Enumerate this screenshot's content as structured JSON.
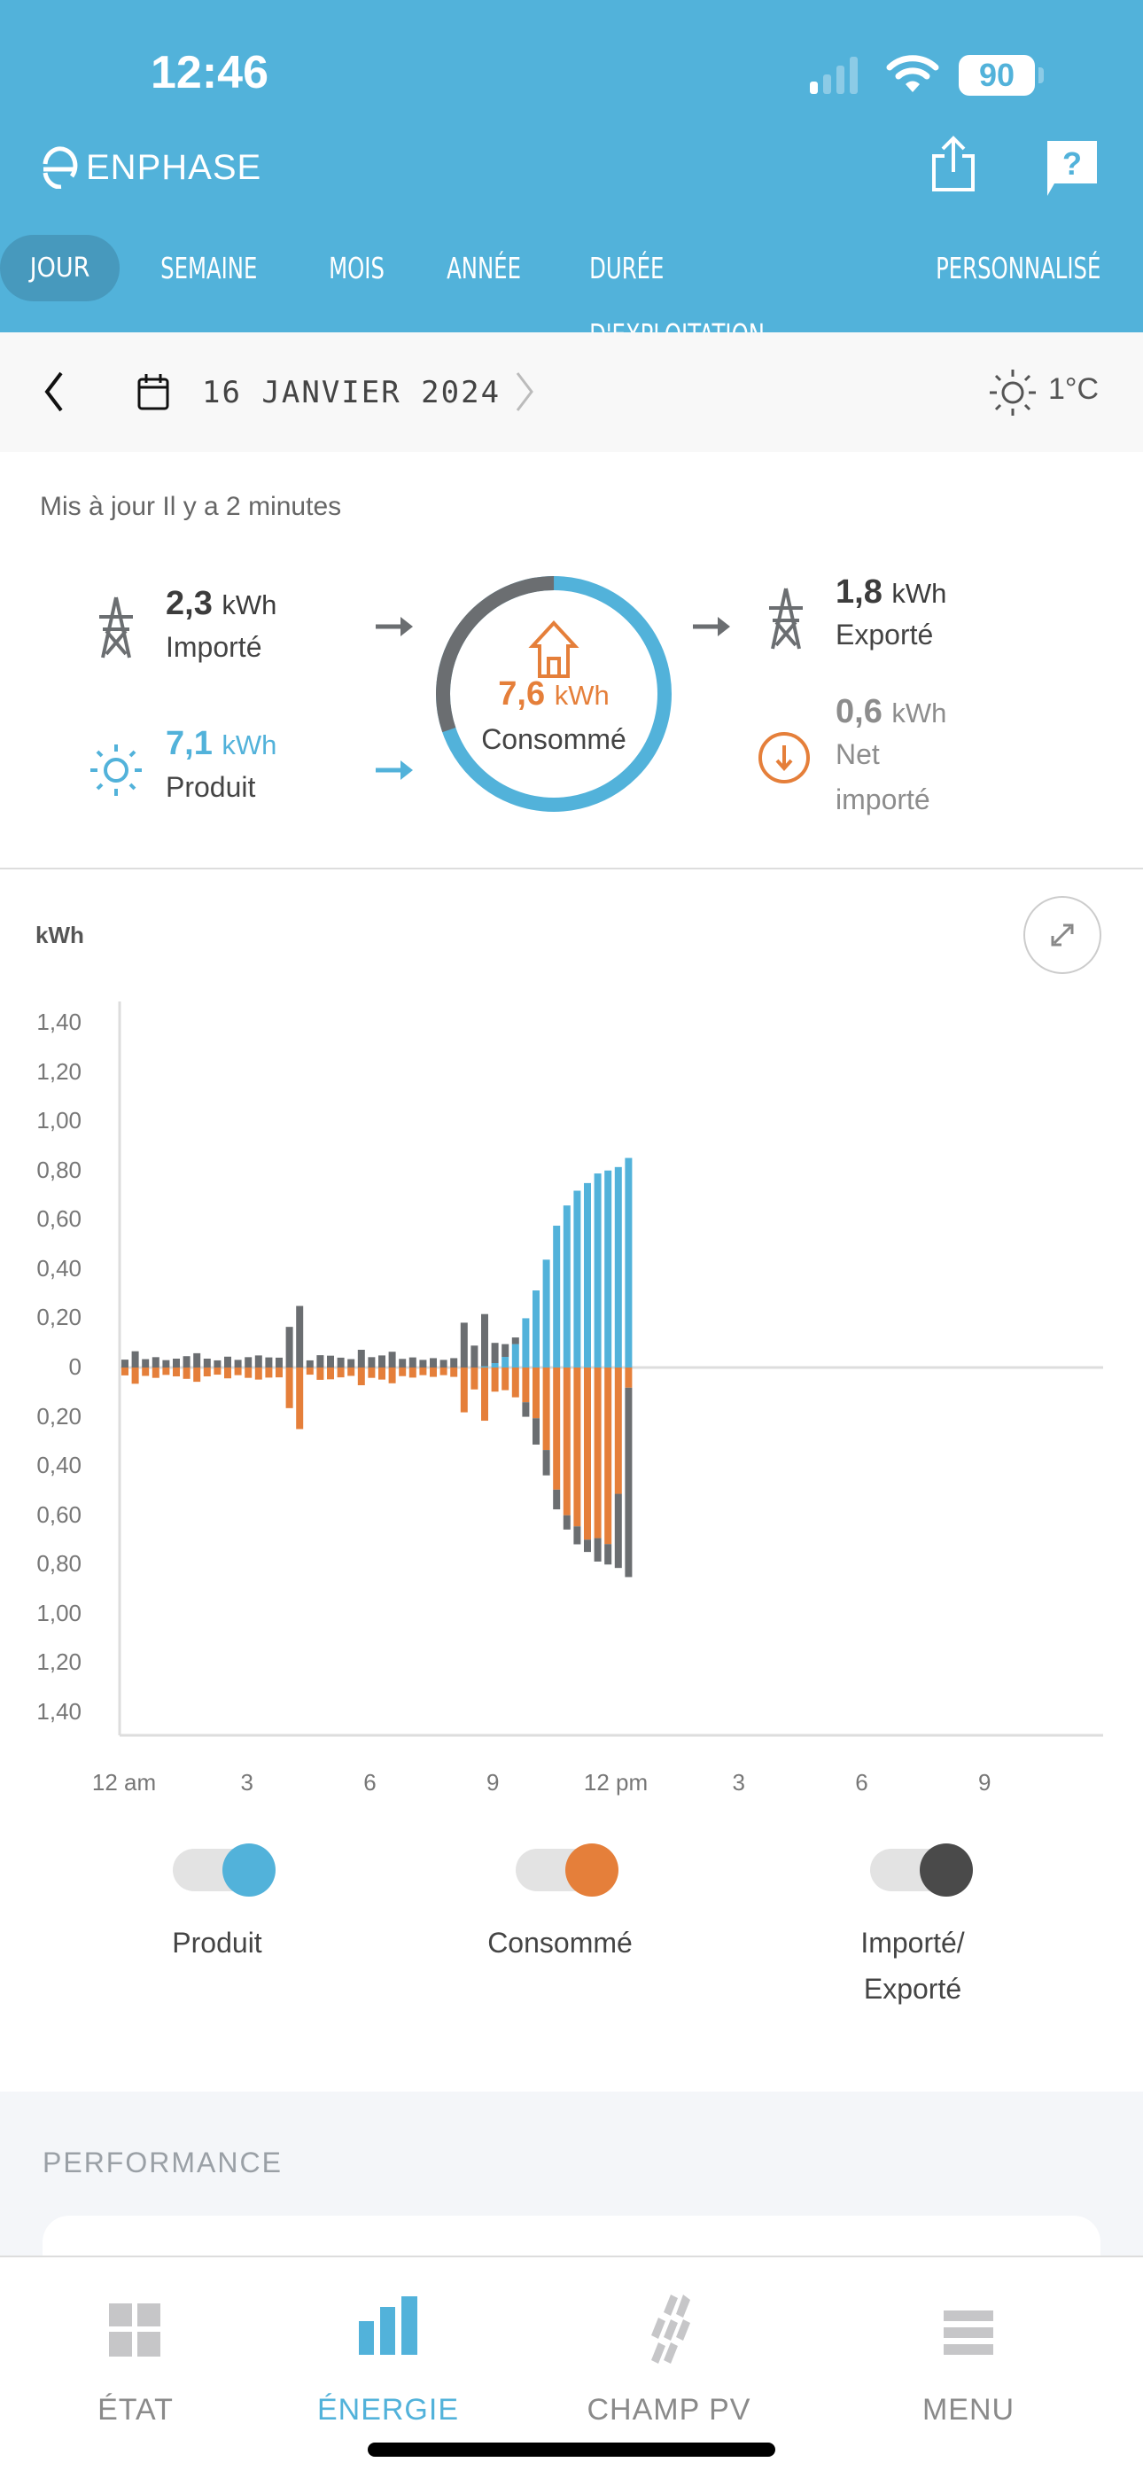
{
  "status_bar": {
    "time": "12:46",
    "battery": "90"
  },
  "header": {
    "brand": "ENPHASE",
    "share_icon": "share-icon",
    "help_icon": "help-icon"
  },
  "tabs": [
    {
      "label": "JOUR",
      "active": true
    },
    {
      "label": "SEMAINE"
    },
    {
      "label": "MOIS"
    },
    {
      "label": "ANNÉE"
    },
    {
      "label": "DURÉE D'EXPLOITATION"
    },
    {
      "label": "PERSONNALISÉ"
    }
  ],
  "date_row": {
    "date": "16 JANVIER 2024",
    "temperature": "1°C"
  },
  "summary": {
    "updated": "Mis à jour Il y a 2 minutes",
    "imported": {
      "value": "2,3",
      "unit": "kWh",
      "label": "Importé"
    },
    "produced": {
      "value": "7,1",
      "unit": "kWh",
      "label": "Produit"
    },
    "consumed": {
      "value": "7,6",
      "unit": "kWh",
      "label": "Consommé"
    },
    "exported": {
      "value": "1,8",
      "unit": "kWh",
      "label": "Exporté"
    },
    "net": {
      "value": "0,6",
      "unit": "kWh",
      "label_1": "Net",
      "label_2": "importé"
    }
  },
  "colors": {
    "header": "#52b2da",
    "produced": "#52b2da",
    "consumed": "#e57f3a",
    "grid": "#6b6e71"
  },
  "chart_data": {
    "type": "bar",
    "ylabel": "kWh",
    "ylim": [
      -1.4,
      1.4
    ],
    "y_ticks": [
      "1,40",
      "1,20",
      "1,00",
      "0,80",
      "0,60",
      "0,40",
      "0,20",
      "0",
      "0,20",
      "0,40",
      "0,60",
      "0,80",
      "1,00",
      "1,20",
      "1,40"
    ],
    "x_ticks": [
      "12 am",
      "3",
      "6",
      "9",
      "12 pm",
      "3",
      "6",
      "9"
    ],
    "interval": "15 min",
    "x": [
      "00:00",
      "00:15",
      "00:30",
      "00:45",
      "01:00",
      "01:15",
      "01:30",
      "01:45",
      "02:00",
      "02:15",
      "02:30",
      "02:45",
      "03:00",
      "03:15",
      "03:30",
      "03:45",
      "04:00",
      "04:15",
      "04:30",
      "04:45",
      "05:00",
      "05:15",
      "05:30",
      "05:45",
      "06:00",
      "06:15",
      "06:30",
      "06:45",
      "07:00",
      "07:15",
      "07:30",
      "07:45",
      "08:00",
      "08:15",
      "08:30",
      "08:45",
      "09:00",
      "09:15",
      "09:30",
      "09:45",
      "10:00",
      "10:15",
      "10:30",
      "10:45",
      "11:00",
      "11:15",
      "11:30",
      "11:45",
      "12:00",
      "12:15"
    ],
    "series": [
      {
        "name": "Produit",
        "stack": "above",
        "values": [
          0,
          0,
          0,
          0,
          0,
          0,
          0,
          0,
          0,
          0,
          0,
          0,
          0,
          0,
          0,
          0,
          0,
          0,
          0,
          0,
          0,
          0,
          0,
          0,
          0,
          0,
          0,
          0,
          0,
          0,
          0,
          0,
          0,
          0,
          0,
          0.005,
          0.018,
          0.043,
          0.095,
          0.2,
          0.313,
          0.438,
          0.576,
          0.658,
          0.718,
          0.749,
          0.788,
          0.8,
          0.814,
          0.851
        ]
      },
      {
        "name": "Importé",
        "stack": "above",
        "values": [
          0.032,
          0.066,
          0.034,
          0.042,
          0.03,
          0.036,
          0.046,
          0.058,
          0.036,
          0.029,
          0.044,
          0.031,
          0.042,
          0.049,
          0.041,
          0.04,
          0.165,
          0.25,
          0.029,
          0.05,
          0.048,
          0.04,
          0.034,
          0.072,
          0.042,
          0.049,
          0.064,
          0.035,
          0.041,
          0.031,
          0.038,
          0.031,
          0.038,
          0.182,
          0.089,
          0.212,
          0.082,
          0.052,
          0.027,
          0,
          0,
          0,
          0,
          0,
          0,
          0,
          0,
          0,
          0,
          0
        ]
      },
      {
        "name": "Consommé",
        "stack": "below",
        "values": [
          0.032,
          0.066,
          0.034,
          0.042,
          0.03,
          0.036,
          0.046,
          0.058,
          0.036,
          0.029,
          0.044,
          0.031,
          0.042,
          0.049,
          0.041,
          0.04,
          0.165,
          0.25,
          0.029,
          0.05,
          0.048,
          0.04,
          0.034,
          0.072,
          0.042,
          0.049,
          0.064,
          0.035,
          0.041,
          0.031,
          0.038,
          0.031,
          0.038,
          0.182,
          0.089,
          0.216,
          0.098,
          0.092,
          0.121,
          0.141,
          0.206,
          0.335,
          0.496,
          0.6,
          0.645,
          0.699,
          0.693,
          0.717,
          0.513,
          0.082
        ]
      },
      {
        "name": "Exporté",
        "stack": "below",
        "values": [
          0,
          0,
          0,
          0,
          0,
          0,
          0,
          0,
          0,
          0,
          0,
          0,
          0,
          0,
          0,
          0,
          0,
          0,
          0,
          0,
          0,
          0,
          0,
          0,
          0,
          0,
          0,
          0,
          0,
          0,
          0,
          0,
          0,
          0,
          0,
          0,
          0,
          0,
          0,
          0.059,
          0.107,
          0.103,
          0.08,
          0.058,
          0.073,
          0.05,
          0.095,
          0.083,
          0.301,
          0.769
        ]
      }
    ]
  },
  "legend": [
    {
      "label": "Produit",
      "on": true,
      "color": "#52b2da"
    },
    {
      "label": "Consommé",
      "on": true,
      "color": "#e57f3a"
    },
    {
      "label_1": "Importé/",
      "label_2": "Exporté",
      "on": true,
      "color": "#4a4a4a"
    }
  ],
  "performance": {
    "title": "PERFORMANCE"
  },
  "bottom_nav": [
    {
      "label": "ÉTAT"
    },
    {
      "label": "ÉNERGIE",
      "active": true
    },
    {
      "label": "CHAMP PV"
    },
    {
      "label": "MENU"
    }
  ]
}
